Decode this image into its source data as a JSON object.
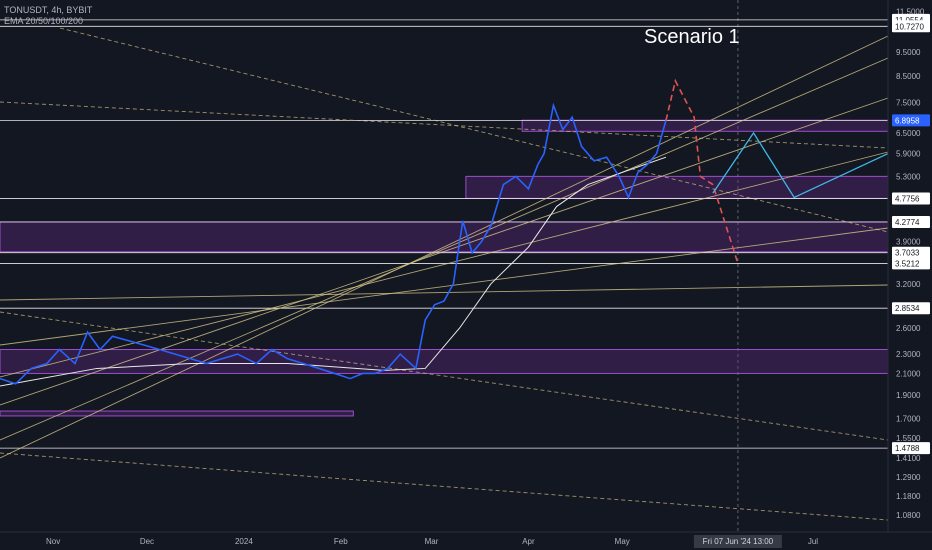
{
  "header": {
    "symbol_line": "TONUSDT, 4h, BYBIT",
    "indicator_line": "EMA 20/50/100/200"
  },
  "annotation": {
    "scenario": "Scenario 1"
  },
  "colors": {
    "background": "#131722",
    "price_line": "#2962ff",
    "zone_fill": "#6a2a8a",
    "zone_border": "#9c4dcc",
    "trend_lines": "#d8c98a",
    "projection_red": "#e05353",
    "projection_blue": "#3fb8e8",
    "highlight_label": "#2962ff"
  },
  "price_axis": {
    "ticks": [
      "11.5000",
      "9.5000",
      "8.5000",
      "7.5000",
      "6.5000",
      "5.9000",
      "5.3000",
      "3.9000",
      "3.2000",
      "2.6000",
      "2.3000",
      "2.1000",
      "1.9000",
      "1.7000",
      "1.5500",
      "1.4100",
      "1.2900",
      "1.1800",
      "1.0800"
    ],
    "level_labels": [
      "11.0554",
      "10.7270",
      "6.8958",
      "4.7756",
      "4.2774",
      "3.7033",
      "3.5212",
      "2.8534",
      "1.4788"
    ],
    "current_price": "6.8958"
  },
  "time_axis": {
    "labels": [
      "Nov",
      "Dec",
      "2024",
      "Feb",
      "Mar",
      "Apr",
      "May",
      "Jun",
      "Jul"
    ],
    "crosshair_label": "Fri 07 Jun '24   13:00"
  },
  "chart_data": {
    "type": "line",
    "title": "TONUSDT, 4h, BYBIT",
    "scale": "log",
    "ylim": [
      1.05,
      11.8
    ],
    "x_range": [
      "2023-10-15",
      "2024-07-25"
    ],
    "series": [
      {
        "name": "TONUSDT",
        "x": [
          "2023-10-15",
          "2023-10-20",
          "2023-10-25",
          "2023-10-30",
          "2023-11-03",
          "2023-11-08",
          "2023-11-12",
          "2023-11-16",
          "2023-11-20",
          "2023-11-25",
          "2023-11-30",
          "2023-12-05",
          "2023-12-10",
          "2023-12-15",
          "2023-12-20",
          "2023-12-25",
          "2023-12-30",
          "2024-01-05",
          "2024-01-10",
          "2024-01-15",
          "2024-01-20",
          "2024-01-25",
          "2024-01-30",
          "2024-02-04",
          "2024-02-08",
          "2024-02-12",
          "2024-02-16",
          "2024-02-20",
          "2024-02-25",
          "2024-02-28",
          "2024-03-02",
          "2024-03-05",
          "2024-03-08",
          "2024-03-11",
          "2024-03-14",
          "2024-03-17",
          "2024-03-20",
          "2024-03-24",
          "2024-03-28",
          "2024-04-01",
          "2024-04-04",
          "2024-04-06",
          "2024-04-09",
          "2024-04-12",
          "2024-04-15",
          "2024-04-18",
          "2024-04-22",
          "2024-04-26",
          "2024-04-30",
          "2024-05-03",
          "2024-05-06",
          "2024-05-09",
          "2024-05-12",
          "2024-05-15"
        ],
        "values": [
          2.05,
          2.0,
          2.15,
          2.2,
          2.35,
          2.2,
          2.55,
          2.35,
          2.5,
          2.45,
          2.4,
          2.35,
          2.3,
          2.25,
          2.2,
          2.25,
          2.3,
          2.2,
          2.35,
          2.25,
          2.2,
          2.15,
          2.1,
          2.05,
          2.1,
          2.1,
          2.15,
          2.3,
          2.15,
          2.7,
          2.9,
          2.95,
          3.2,
          4.3,
          3.7,
          3.9,
          4.2,
          5.1,
          5.3,
          5.0,
          5.6,
          5.9,
          7.4,
          6.6,
          7.0,
          6.1,
          5.7,
          5.8,
          5.3,
          4.8,
          5.4,
          5.6,
          5.9,
          6.9
        ]
      },
      {
        "name": "EMA 200",
        "x": [
          "2023-10-15",
          "2023-11-15",
          "2023-12-15",
          "2024-01-15",
          "2024-02-15",
          "2024-02-28",
          "2024-03-10",
          "2024-03-20",
          "2024-04-01",
          "2024-04-10",
          "2024-04-20",
          "2024-05-01",
          "2024-05-15"
        ],
        "values": [
          1.98,
          2.15,
          2.2,
          2.2,
          2.13,
          2.15,
          2.6,
          3.2,
          3.8,
          4.6,
          5.1,
          5.4,
          5.8
        ]
      }
    ],
    "zones": [
      {
        "top": 6.9,
        "bottom": 6.55,
        "start": "2024-03-30"
      },
      {
        "top": 5.3,
        "bottom": 4.78,
        "start": "2024-03-12"
      },
      {
        "top": 4.28,
        "bottom": 3.72,
        "start": "2023-10-15"
      },
      {
        "top": 2.35,
        "bottom": 2.1,
        "start": "2023-10-15"
      },
      {
        "top": 1.76,
        "bottom": 1.72,
        "start": "2023-10-15",
        "end": "2024-02-05"
      }
    ],
    "projection_red": {
      "x": [
        "2024-05-15",
        "2024-05-18",
        "2024-05-24",
        "2024-05-26",
        "2024-05-30",
        "2024-06-07"
      ],
      "values": [
        6.9,
        8.3,
        7.0,
        5.3,
        5.1,
        3.52
      ]
    },
    "projection_blue": {
      "x": [
        "2024-05-30",
        "2024-06-12",
        "2024-06-25",
        "2024-07-25"
      ],
      "values": [
        4.9,
        6.5,
        4.8,
        5.9
      ]
    }
  }
}
